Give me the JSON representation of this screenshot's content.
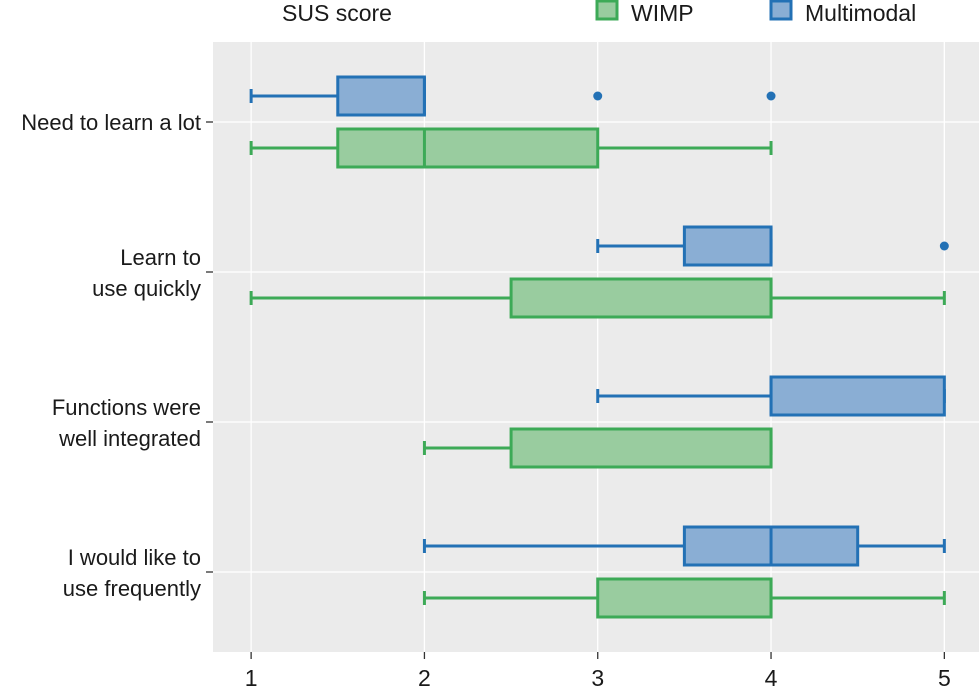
{
  "chart_data": {
    "type": "boxplot",
    "orientation": "horizontal",
    "title": "SUS score",
    "xlim": [
      0.78,
      5.2
    ],
    "x_ticks": [
      "1",
      "2",
      "3",
      "4",
      "5"
    ],
    "grid": true,
    "legend_position": "top",
    "categories": [
      [
        "Need to learn a lot"
      ],
      [
        "Learn to",
        "use quickly"
      ],
      [
        "Functions were",
        "well integrated"
      ],
      [
        "I would like to",
        "use frequently"
      ]
    ],
    "series": [
      {
        "name": "WIMP",
        "color": "#3daa57",
        "fill": "#99cc9f",
        "boxes": [
          {
            "min": 1,
            "q1": 1.5,
            "median": 2,
            "q3": 3,
            "max": 4,
            "outliers": []
          },
          {
            "min": 1,
            "q1": 2.5,
            "median": 4,
            "q3": 4,
            "max": 5,
            "outliers": []
          },
          {
            "min": 2,
            "q1": 2.5,
            "median": 4,
            "q3": 4,
            "max": 4,
            "outliers": []
          },
          {
            "min": 2,
            "q1": 3,
            "median": 4,
            "q3": 4,
            "max": 5,
            "outliers": []
          }
        ]
      },
      {
        "name": "Multimodal",
        "color": "#2371b5",
        "fill": "#8aaed4",
        "boxes": [
          {
            "min": 1,
            "q1": 1.5,
            "median": 2,
            "q3": 2,
            "max": 2,
            "outliers": [
              3,
              4
            ]
          },
          {
            "min": 3,
            "q1": 3.5,
            "median": 4,
            "q3": 4,
            "max": 4,
            "outliers": [
              5
            ]
          },
          {
            "min": 3,
            "q1": 4,
            "median": 4,
            "q3": 5,
            "max": 5,
            "outliers": []
          },
          {
            "min": 2,
            "q1": 3.5,
            "median": 4,
            "q3": 4.5,
            "max": 5,
            "outliers": []
          }
        ]
      }
    ]
  }
}
